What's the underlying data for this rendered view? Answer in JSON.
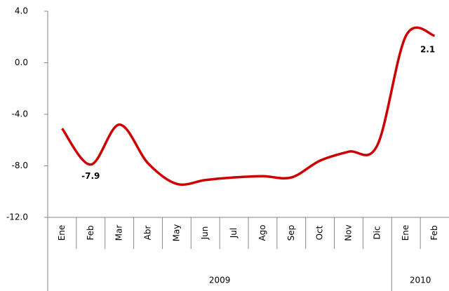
{
  "chart_data": {
    "type": "line",
    "categories": [
      "Ene",
      "Feb",
      "Mar",
      "Abr",
      "May",
      "Jun",
      "Jul",
      "Ago",
      "Sep",
      "Oct",
      "Nov",
      "Dic",
      "Ene",
      "Feb"
    ],
    "years": [
      "2009",
      "2009",
      "2009",
      "2009",
      "2009",
      "2009",
      "2009",
      "2009",
      "2009",
      "2009",
      "2009",
      "2009",
      "2010",
      "2010"
    ],
    "values": [
      -5.1,
      -7.9,
      -4.8,
      -7.8,
      -9.4,
      -9.1,
      -8.9,
      -8.8,
      -8.9,
      -7.6,
      -6.9,
      -6.4,
      2.1,
      2.1
    ],
    "value_labels": [
      null,
      "-7.9",
      null,
      null,
      null,
      null,
      null,
      null,
      null,
      null,
      null,
      null,
      null,
      "2.1"
    ],
    "color": "#cc0000",
    "ylim": [
      -12,
      4
    ],
    "yticks": [
      {
        "value": -12,
        "label": "-12.0"
      },
      {
        "value": -8,
        "label": "-8.0"
      },
      {
        "value": -4,
        "label": "-4.0"
      },
      {
        "value": 0,
        "label": "0.0"
      },
      {
        "value": 4,
        "label": "4.0"
      }
    ],
    "smooth": true
  }
}
